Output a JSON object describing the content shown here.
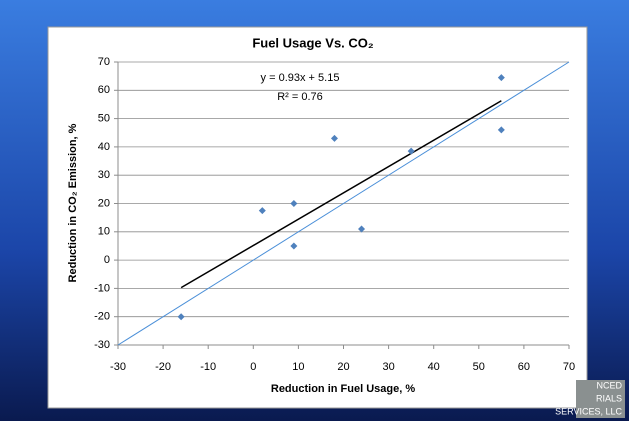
{
  "chart_data": {
    "type": "scatter",
    "title": "Fuel Usage Vs. CO₂",
    "x_label": "Reduction in Fuel Usage, %",
    "y_label": "Reduction in CO₂ Emission, %",
    "x": [
      -16,
      2,
      9,
      9,
      18,
      24,
      35,
      55,
      55
    ],
    "values": [
      -20,
      17.5,
      20,
      5,
      43,
      11,
      38.5,
      64.5,
      46
    ],
    "color": "#4f81bd",
    "xlim": [
      -30,
      70
    ],
    "ylim": [
      -30,
      70
    ],
    "xticks": [
      -30,
      -20,
      -10,
      0,
      10,
      20,
      30,
      40,
      50,
      60,
      70
    ],
    "yticks": [
      -30,
      -20,
      -10,
      0,
      10,
      20,
      30,
      40,
      50,
      60,
      70
    ],
    "grid": true,
    "trendline": {
      "equation": "y = 0.93x + 5.15",
      "r_squared": "R² = 0.76",
      "color": "#000000",
      "x": [
        -16,
        55
      ],
      "y": [
        -9.73,
        56.3
      ]
    },
    "reference_line": {
      "color": "#4a8fd8",
      "x": [
        -30,
        70
      ],
      "y": [
        -30,
        70
      ]
    }
  },
  "logo": {
    "lines": [
      "NCED",
      "RIALS",
      "SERVICES, LLC"
    ]
  }
}
